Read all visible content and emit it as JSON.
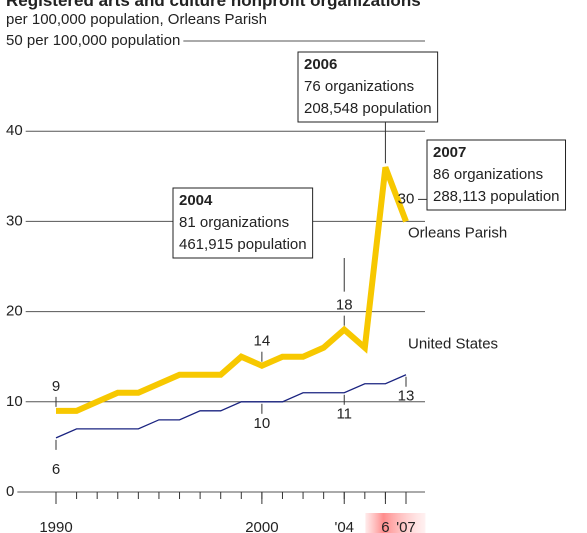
{
  "chart_data": {
    "type": "line",
    "title": "Registered arts and culture nonprofit organizations",
    "subtitle": "per 100,000 population, Orleans Parish",
    "x": [
      1990,
      1991,
      1992,
      1993,
      1994,
      1995,
      1996,
      1997,
      1998,
      1999,
      2000,
      2001,
      2002,
      2003,
      2004,
      2005,
      2006,
      2007
    ],
    "xlim": [
      1990,
      2007
    ],
    "xticks": [
      1990,
      2000,
      {
        "value": 2004,
        "label": "'04"
      },
      {
        "value": 2006,
        "label": "6"
      },
      {
        "value": 2007,
        "label": "'07"
      }
    ],
    "ylim": [
      0,
      50
    ],
    "yticks": [
      0,
      10,
      20,
      30,
      40,
      {
        "value": 50,
        "label": "50 per 100,000 population"
      }
    ],
    "grid": true,
    "highlight_x": 2006,
    "labeled_x": [
      1990,
      2000,
      2004,
      2007
    ],
    "series": [
      {
        "name": "Orleans Parish",
        "color": "#f7c800",
        "values": [
          9,
          9,
          10,
          11,
          11,
          12,
          13,
          13,
          13,
          15,
          14,
          15,
          15,
          16,
          18,
          16,
          36,
          30
        ]
      },
      {
        "name": "United States",
        "color": "#1a2380",
        "values": [
          6,
          7,
          7,
          7,
          7,
          8,
          8,
          9,
          9,
          10,
          10,
          10,
          11,
          11,
          11,
          12,
          12,
          13
        ]
      }
    ],
    "annotations": [
      {
        "x": 2004,
        "lines": [
          "2004",
          "81 organizations",
          "461,915 population"
        ]
      },
      {
        "x": 2006,
        "lines": [
          "2006",
          "76 organizations",
          "208,548 population"
        ]
      },
      {
        "x": 2007,
        "lines": [
          "2007",
          "86 organizations",
          "288,113 population"
        ]
      }
    ]
  }
}
